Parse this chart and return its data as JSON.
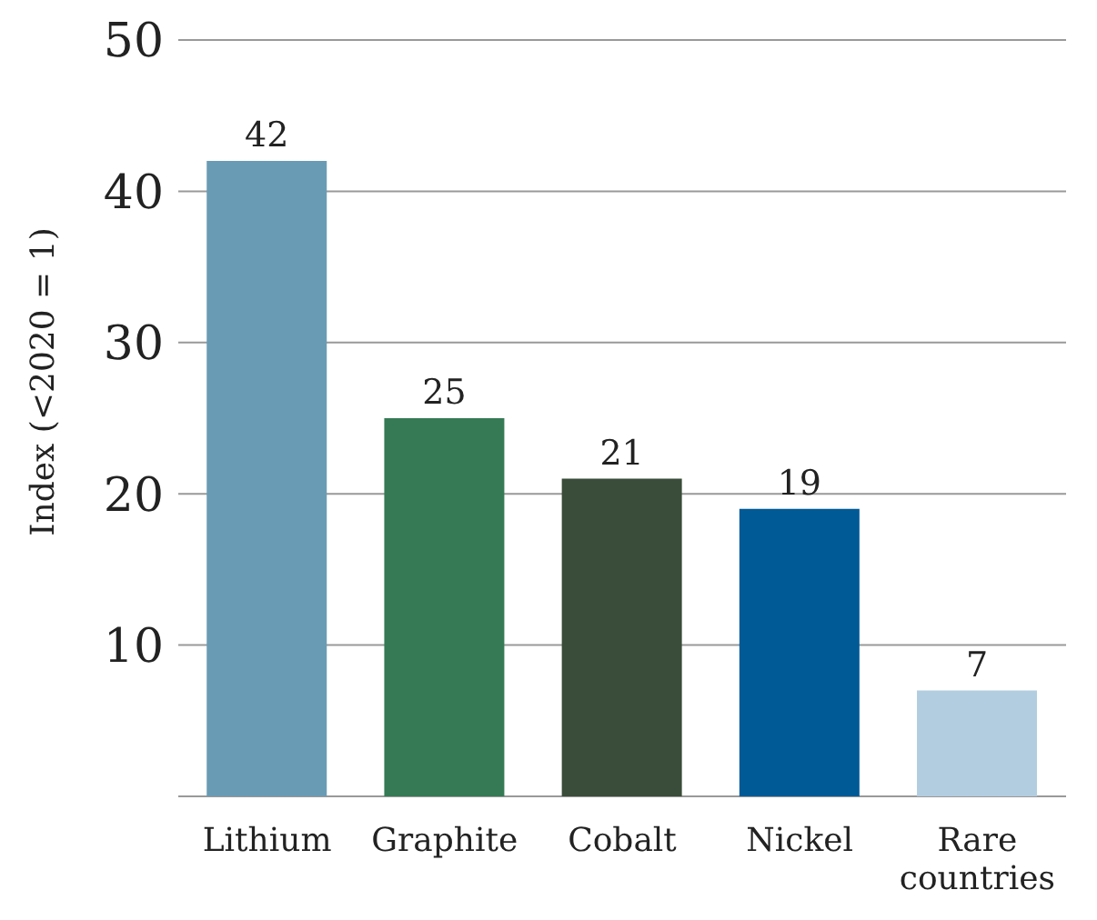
{
  "chart_data": {
    "type": "bar",
    "ylabel": "Index (<2020 = 1)",
    "categories": [
      "Lithium",
      "Graphite",
      "Cobalt",
      "Nickel",
      "Rare countries"
    ],
    "values": [
      42,
      25,
      21,
      19,
      7
    ],
    "colors": [
      "#6a9bb5",
      "#357a55",
      "#3a4c3a",
      "#005a96",
      "#b3cde0"
    ],
    "ylim": [
      0,
      50
    ],
    "yticks": [
      10,
      20,
      30,
      40,
      50
    ],
    "grid": "y",
    "data_labels": true
  }
}
